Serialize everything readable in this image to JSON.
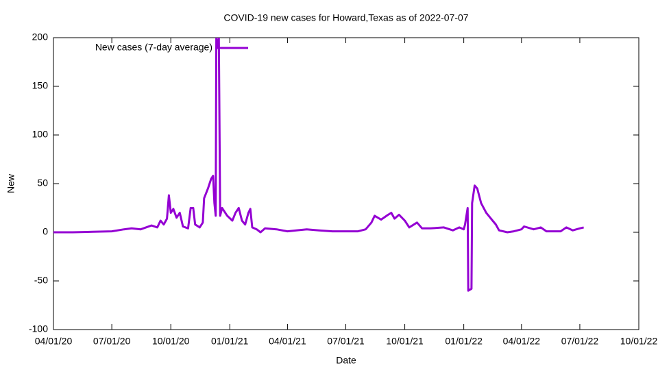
{
  "chart_data": {
    "type": "line",
    "title": "COVID-19 new cases for Howard,Texas as of 2022-07-07",
    "xlabel": "Date",
    "ylabel": "New",
    "legend": "top left",
    "x": [
      "2020-04-01",
      "2020-05-01",
      "2020-06-01",
      "2020-07-01",
      "2020-07-20",
      "2020-08-01",
      "2020-08-15",
      "2020-09-01",
      "2020-09-10",
      "2020-09-15",
      "2020-09-20",
      "2020-09-25",
      "2020-09-28",
      "2020-10-01",
      "2020-10-05",
      "2020-10-10",
      "2020-10-15",
      "2020-10-20",
      "2020-10-28",
      "2020-11-01",
      "2020-11-05",
      "2020-11-08",
      "2020-11-15",
      "2020-11-20",
      "2020-11-22",
      "2020-11-28",
      "2020-12-03",
      "2020-12-06",
      "2020-12-08",
      "2020-12-10",
      "2020-12-11",
      "2020-12-13",
      "2020-12-15",
      "2020-12-17",
      "2020-12-20",
      "2020-12-28",
      "2021-01-05",
      "2021-01-10",
      "2021-01-15",
      "2021-01-20",
      "2021-01-25",
      "2021-01-30",
      "2021-02-02",
      "2021-02-05",
      "2021-02-12",
      "2021-02-18",
      "2021-02-25",
      "2021-03-15",
      "2021-04-01",
      "2021-04-15",
      "2021-05-01",
      "2021-05-20",
      "2021-06-10",
      "2021-07-01",
      "2021-07-20",
      "2021-08-01",
      "2021-08-10",
      "2021-08-15",
      "2021-08-25",
      "2021-09-05",
      "2021-09-10",
      "2021-09-15",
      "2021-09-22",
      "2021-10-01",
      "2021-10-08",
      "2021-10-20",
      "2021-10-28",
      "2021-11-10",
      "2021-12-01",
      "2021-12-15",
      "2021-12-25",
      "2022-01-01",
      "2022-01-03",
      "2022-01-07",
      "2022-01-08",
      "2022-01-13",
      "2022-01-14",
      "2022-01-18",
      "2022-01-22",
      "2022-01-28",
      "2022-02-05",
      "2022-02-15",
      "2022-02-20",
      "2022-02-25",
      "2022-03-10",
      "2022-03-20",
      "2022-04-01",
      "2022-04-05",
      "2022-04-20",
      "2022-05-01",
      "2022-05-10",
      "2022-06-01",
      "2022-06-10",
      "2022-06-20",
      "2022-07-01",
      "2022-07-07"
    ],
    "series": [
      {
        "name": "New cases (7-day average)",
        "color": "#9400d3",
        "values": [
          0,
          0,
          0.5,
          1,
          3,
          4,
          3,
          7,
          5,
          12,
          8,
          14,
          38,
          20,
          24,
          15,
          20,
          6,
          4,
          25,
          25,
          8,
          5,
          10,
          35,
          45,
          55,
          58,
          30,
          17,
          200,
          190,
          200,
          17,
          25,
          17,
          12,
          20,
          25,
          12,
          8,
          20,
          24,
          5,
          3,
          0,
          4,
          3,
          1,
          2,
          3,
          2,
          1,
          1,
          1,
          3,
          10,
          17,
          13,
          18,
          20,
          14,
          18,
          12,
          5,
          10,
          4,
          4,
          5,
          2,
          5,
          3,
          8,
          25,
          -60,
          -58,
          30,
          48,
          45,
          30,
          20,
          12,
          8,
          2,
          0,
          1,
          3,
          6,
          3,
          5,
          1,
          1,
          5,
          2,
          4,
          5
        ]
      }
    ],
    "xlim": [
      "2020-04-01",
      "2022-10-01"
    ],
    "xticks": [
      {
        "value": "2020-04-01",
        "label": "04/01/20"
      },
      {
        "value": "2020-07-01",
        "label": "07/01/20"
      },
      {
        "value": "2020-10-01",
        "label": "10/01/20"
      },
      {
        "value": "2021-01-01",
        "label": "01/01/21"
      },
      {
        "value": "2021-04-01",
        "label": "04/01/21"
      },
      {
        "value": "2021-07-01",
        "label": "07/01/21"
      },
      {
        "value": "2021-10-01",
        "label": "10/01/21"
      },
      {
        "value": "2022-01-01",
        "label": "01/01/22"
      },
      {
        "value": "2022-04-01",
        "label": "04/01/22"
      },
      {
        "value": "2022-07-01",
        "label": "07/01/22"
      },
      {
        "value": "2022-10-01",
        "label": "10/01/22"
      }
    ],
    "ylim": [
      -100,
      200
    ],
    "yticks": [
      -100,
      -50,
      0,
      50,
      100,
      150,
      200
    ],
    "grid": false
  }
}
